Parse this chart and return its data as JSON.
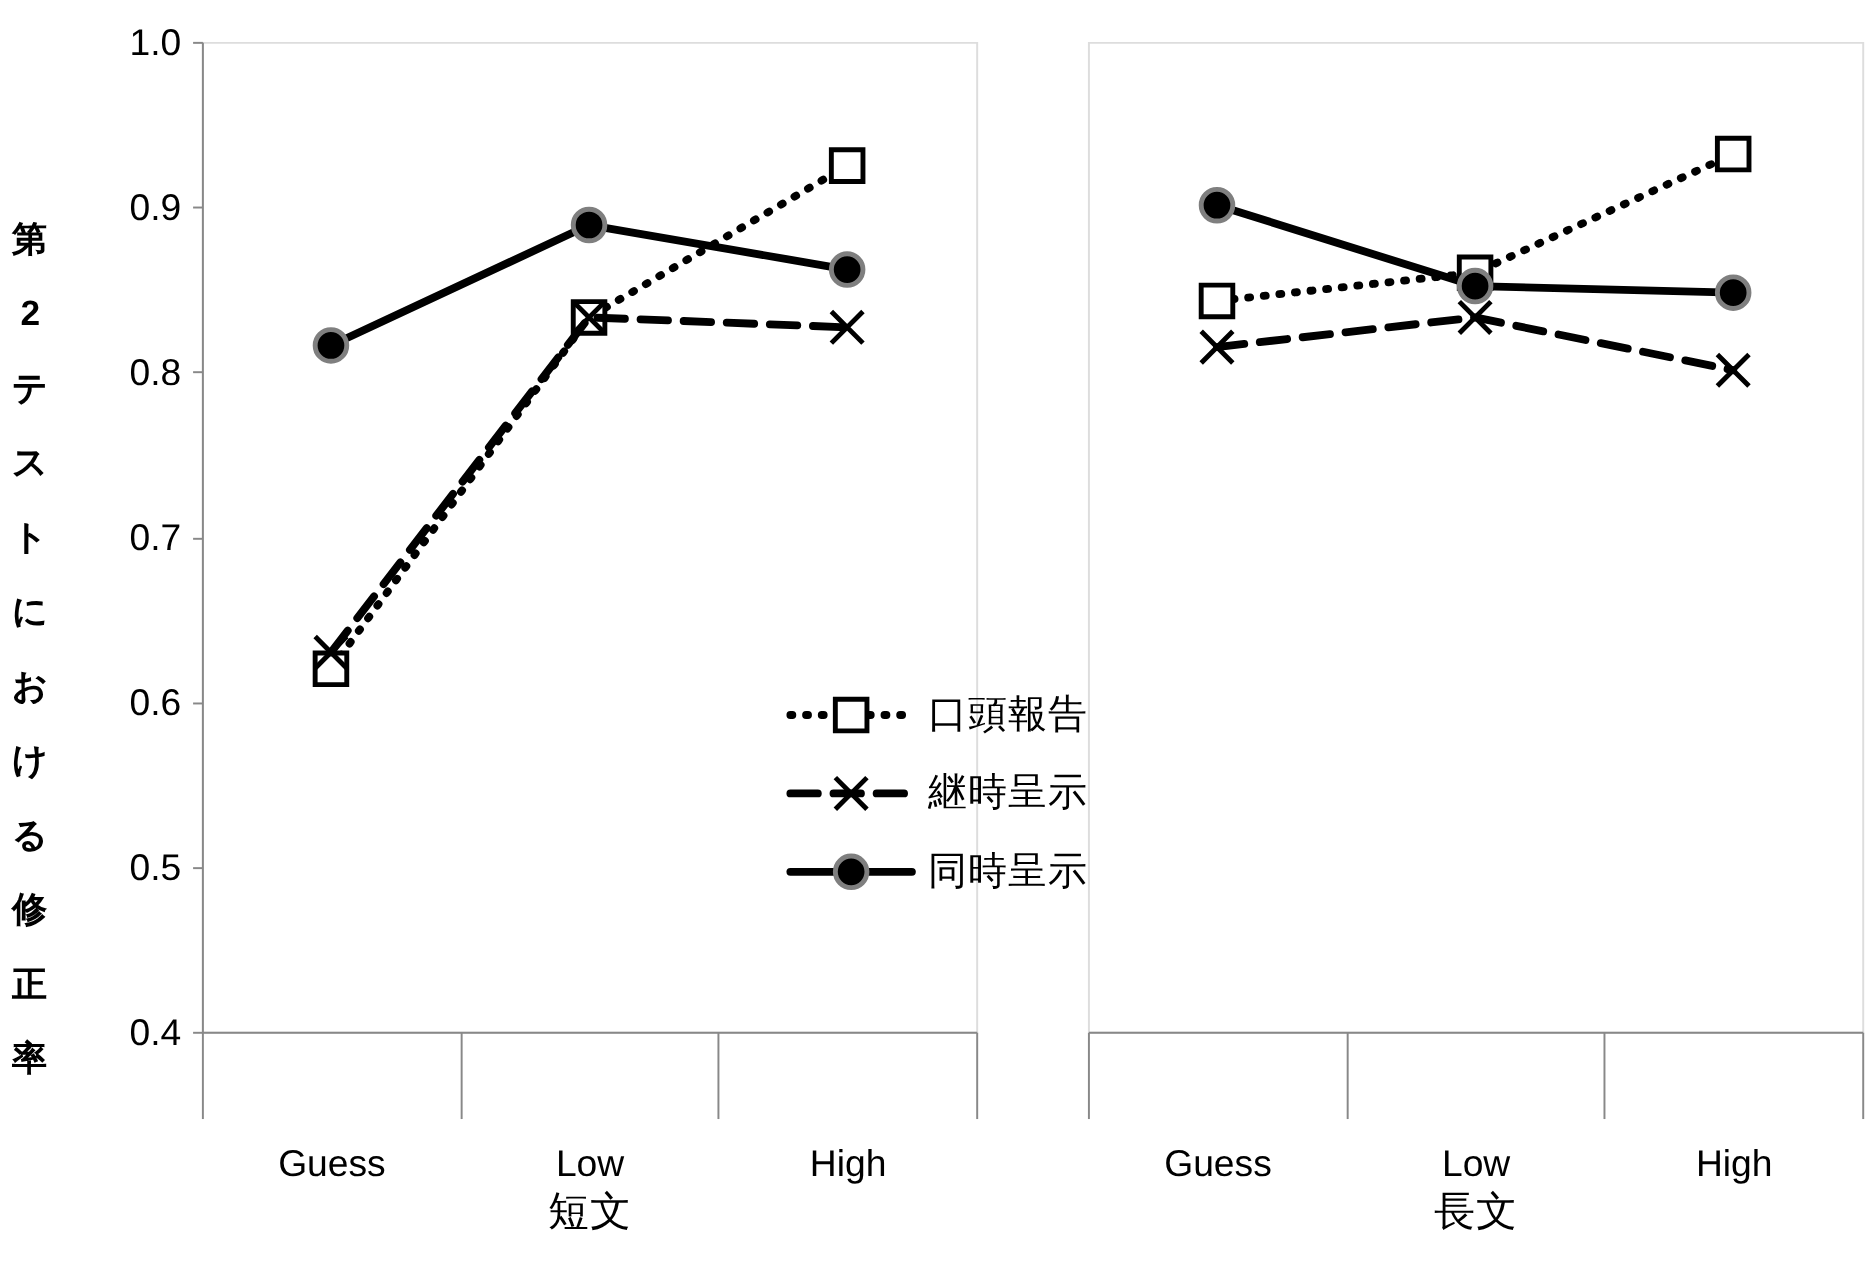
{
  "chart_data": [
    {
      "type": "line",
      "categories": [
        "Guess",
        "Low",
        "High"
      ],
      "xlabel": "短文",
      "ylabel": "第2テストにおける修正率",
      "ylim": [
        0.4,
        1.0
      ],
      "yticks": [
        {
          "value": 0.4,
          "label": "0.4"
        },
        {
          "value": 0.5,
          "label": "0.5"
        },
        {
          "value": 0.6,
          "label": "0.6"
        },
        {
          "value": 0.7,
          "label": "0.7"
        },
        {
          "value": 0.8,
          "label": "0.8"
        },
        {
          "value": 0.9,
          "label": "0.9"
        },
        {
          "value": 1.0,
          "label": "1.0"
        }
      ],
      "grid": false,
      "legend": "bottom",
      "series": [
        {
          "name": "口頭報告",
          "color": "#000000",
          "marker": "square",
          "line_style": "dotted",
          "values": [
            0.62,
            0.833,
            0.925
          ]
        },
        {
          "name": "継時呈示",
          "color": "#000000",
          "marker": "cross",
          "line_style": "dashed",
          "values": [
            0.63,
            0.833,
            0.827
          ]
        },
        {
          "name": "同時呈示",
          "color": "#000000",
          "marker": "circle",
          "line_style": "solid",
          "values": [
            0.816,
            0.889,
            0.862
          ]
        }
      ]
    },
    {
      "type": "line",
      "categories": [
        "Guess",
        "Low",
        "High"
      ],
      "xlabel": "長文",
      "ylim": [
        0.4,
        1.0
      ],
      "tick_labels": "x",
      "grid": false,
      "series": [
        {
          "color": "#000000",
          "marker": "square",
          "line_style": "dotted",
          "values": [
            0.843,
            0.86,
            0.932
          ]
        },
        {
          "color": "#000000",
          "marker": "cross",
          "line_style": "dashed",
          "values": [
            0.815,
            0.833,
            0.801
          ]
        },
        {
          "color": "#000000",
          "marker": "circle",
          "line_style": "solid",
          "values": [
            0.901,
            0.852,
            0.848
          ]
        }
      ]
    }
  ]
}
